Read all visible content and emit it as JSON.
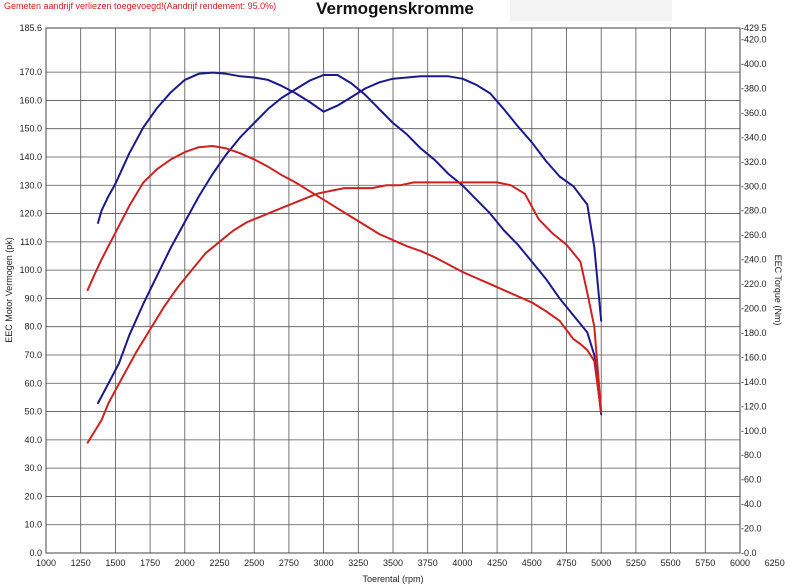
{
  "header": {
    "notice": "Gemeten aandrijf verliezen toegevoegd!(Aandrijf rendement: 95.0%)",
    "title": "Vermogenskromme"
  },
  "chart_data": {
    "type": "line",
    "title": "Vermogenskromme",
    "xlabel": "Toerental (rpm)",
    "ylabel": "EEC Motor Vermogen (pk)",
    "y2label": "EEC Torque (Nm)",
    "xlim": [
      1000,
      6000
    ],
    "ylim": [
      0,
      185.6
    ],
    "y2lim": [
      0,
      429.5
    ],
    "grid": true,
    "x_ticks": [
      "1000",
      "1250",
      "1500",
      "1750",
      "2000",
      "2250",
      "2500",
      "2750",
      "3000",
      "3250",
      "3500",
      "3750",
      "4000",
      "4250",
      "4500",
      "4750",
      "5000",
      "5250",
      "5500",
      "5750",
      "6000",
      "6250"
    ],
    "y_ticks": [
      "0.0",
      "10.0",
      "20.0",
      "30.0",
      "40.0",
      "50.0",
      "60.0",
      "70.0",
      "80.0",
      "90.0",
      "100.0",
      "110.0",
      "120.0",
      "130.0",
      "140.0",
      "150.0",
      "160.0",
      "170.0",
      "185.6"
    ],
    "y2_ticks": [
      "0.0",
      "20.0",
      "40.0",
      "60.0",
      "80.0",
      "100.0",
      "120.0",
      "140.0",
      "160.0",
      "180.0",
      "200.0",
      "220.0",
      "240.0",
      "260.0",
      "280.0",
      "300.0",
      "320.0",
      "340.0",
      "360.0",
      "380.0",
      "400.0",
      "420.0",
      "429.5"
    ],
    "series": [
      {
        "axis": "left",
        "color": "#1a1a8c",
        "x": [
          1375,
          1450,
          1525,
          1600,
          1700,
          1800,
          1900,
          2000,
          2100,
          2200,
          2300,
          2400,
          2500,
          2600,
          2700,
          2800,
          2900,
          3000,
          3100,
          3200,
          3300,
          3400,
          3500,
          3600,
          3700,
          3800,
          3900,
          4000,
          4100,
          4200,
          4300,
          4400,
          4500,
          4600,
          4700,
          4800,
          4900,
          4950,
          5000
        ],
        "y": [
          53,
          60,
          67,
          77,
          88,
          98,
          108,
          117,
          126,
          134,
          141,
          147,
          152,
          157,
          161,
          164,
          167,
          169,
          169,
          166,
          162,
          157,
          152,
          148,
          143,
          139,
          134,
          130,
          125,
          120,
          114,
          109,
          103,
          97,
          90,
          84,
          78,
          70,
          49
        ]
      },
      {
        "axis": "right",
        "color": "#1a1a8c",
        "x": [
          1375,
          1400,
          1450,
          1500,
          1600,
          1700,
          1800,
          1900,
          2000,
          2100,
          2200,
          2300,
          2400,
          2500,
          2600,
          2700,
          2800,
          2900,
          3000,
          3100,
          3200,
          3300,
          3400,
          3500,
          3600,
          3700,
          3800,
          3900,
          4000,
          4100,
          4200,
          4300,
          4400,
          4500,
          4600,
          4700,
          4800,
          4900,
          4950,
          5000
        ],
        "y": [
          270,
          280,
          292,
          302,
          327,
          348,
          364,
          377,
          387,
          392,
          393,
          392,
          390,
          389,
          387,
          382,
          376,
          369,
          361,
          366,
          373,
          380,
          385,
          388,
          389,
          390,
          390,
          390,
          388,
          383,
          376,
          363,
          349,
          336,
          321,
          308,
          300,
          285,
          250,
          190
        ]
      },
      {
        "axis": "left",
        "color": "#cc2222",
        "x": [
          1300,
          1350,
          1400,
          1450,
          1550,
          1650,
          1750,
          1850,
          1950,
          2050,
          2150,
          2250,
          2350,
          2450,
          2550,
          2650,
          2750,
          2850,
          2950,
          3050,
          3150,
          3250,
          3350,
          3450,
          3550,
          3650,
          3750,
          3850,
          3950,
          4050,
          4150,
          4250,
          4350,
          4450,
          4550,
          4650,
          4750,
          4850,
          4900,
          4950,
          5000
        ],
        "y": [
          39,
          43,
          47,
          53,
          62,
          71,
          79,
          87,
          94,
          100,
          106,
          110,
          114,
          117,
          119,
          121,
          123,
          125,
          127,
          128,
          129,
          129,
          129,
          130,
          130,
          131,
          131,
          131,
          131,
          131,
          131,
          131,
          130,
          127,
          118,
          113,
          109,
          103,
          92,
          80,
          50
        ]
      },
      {
        "axis": "right",
        "color": "#cc2222",
        "x": [
          1300,
          1350,
          1400,
          1500,
          1600,
          1700,
          1800,
          1900,
          2000,
          2100,
          2200,
          2300,
          2400,
          2500,
          2600,
          2700,
          2800,
          2900,
          3000,
          3100,
          3200,
          3300,
          3400,
          3500,
          3600,
          3700,
          3800,
          3900,
          4000,
          4100,
          4200,
          4300,
          4400,
          4500,
          4600,
          4700,
          4800,
          4850,
          4900,
          4950,
          5000
        ],
        "y": [
          215,
          228,
          240,
          262,
          284,
          303,
          314,
          322,
          328,
          332,
          333,
          331,
          327,
          322,
          316,
          309,
          303,
          296,
          289,
          282,
          275,
          268,
          261,
          256,
          251,
          247,
          242,
          236,
          230,
          225,
          220,
          215,
          210,
          205,
          198,
          190,
          175,
          171,
          166,
          157,
          115
        ]
      }
    ]
  }
}
